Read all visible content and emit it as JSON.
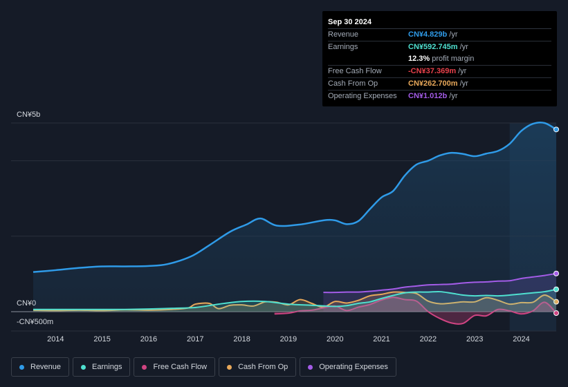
{
  "tooltip": {
    "date": "Sep 30 2024",
    "rows": [
      {
        "label": "Revenue",
        "value": "CN¥4.829b",
        "unit": "/yr",
        "color": "#2f9be8"
      },
      {
        "label": "Earnings",
        "value": "CN¥592.745m",
        "unit": "/yr",
        "color": "#4fe0d0"
      },
      {
        "label": "",
        "value": "12.3%",
        "unit": "profit margin",
        "color": "#ffffff"
      },
      {
        "label": "Free Cash Flow",
        "value": "-CN¥37.369m",
        "unit": "/yr",
        "color": "#e8414b"
      },
      {
        "label": "Cash From Op",
        "value": "CN¥262.700m",
        "unit": "/yr",
        "color": "#e8a85a"
      },
      {
        "label": "Operating Expenses",
        "value": "CN¥1.012b",
        "unit": "/yr",
        "color": "#a45ce8"
      }
    ]
  },
  "legend": [
    {
      "label": "Revenue",
      "color": "#2f9be8"
    },
    {
      "label": "Earnings",
      "color": "#4fe0d0"
    },
    {
      "label": "Free Cash Flow",
      "color": "#d04482"
    },
    {
      "label": "Cash From Op",
      "color": "#e8a85a"
    },
    {
      "label": "Operating Expenses",
      "color": "#a45ce8"
    }
  ],
  "chart_data": {
    "type": "area",
    "ytick_labels": [
      "CN¥5b",
      "CN¥0",
      "-CN¥500m"
    ],
    "ylim": [
      -500,
      5000
    ],
    "y_units": "CN¥ millions",
    "x_ticks": [
      "2014",
      "2015",
      "2016",
      "2017",
      "2018",
      "2019",
      "2020",
      "2021",
      "2022",
      "2023",
      "2024"
    ],
    "xlim": [
      2013.52,
      2024.75
    ],
    "series": [
      {
        "name": "Revenue",
        "color": "#2f9be8",
        "x": [
          2013.52,
          2014.0,
          2014.5,
          2015.0,
          2015.5,
          2016.0,
          2016.4,
          2016.9,
          2017.3,
          2017.75,
          2018.1,
          2018.4,
          2018.75,
          2019.25,
          2019.75,
          2020.0,
          2020.25,
          2020.5,
          2020.75,
          2021.0,
          2021.25,
          2021.5,
          2021.75,
          2022.0,
          2022.25,
          2022.5,
          2022.75,
          2023.0,
          2023.25,
          2023.5,
          2023.75,
          2024.0,
          2024.25,
          2024.5,
          2024.75
        ],
        "values": [
          1050,
          1100,
          1160,
          1200,
          1200,
          1210,
          1260,
          1460,
          1760,
          2120,
          2310,
          2470,
          2280,
          2310,
          2420,
          2420,
          2320,
          2400,
          2720,
          3030,
          3200,
          3610,
          3900,
          4000,
          4140,
          4210,
          4180,
          4120,
          4190,
          4260,
          4450,
          4790,
          4980,
          5000,
          4829
        ]
      },
      {
        "name": "Earnings",
        "color": "#4fe0d0",
        "x": [
          2013.52,
          2014.0,
          2014.5,
          2015.0,
          2015.5,
          2016.0,
          2016.5,
          2017.0,
          2017.5,
          2018.0,
          2018.5,
          2019.0,
          2019.5,
          2020.0,
          2020.25,
          2020.5,
          2020.75,
          2021.0,
          2021.25,
          2021.5,
          2021.75,
          2022.0,
          2022.25,
          2022.5,
          2022.75,
          2023.0,
          2023.25,
          2023.5,
          2023.75,
          2024.0,
          2024.25,
          2024.5,
          2024.75
        ],
        "values": [
          60,
          60,
          60,
          60,
          60,
          70,
          90,
          110,
          200,
          270,
          270,
          200,
          170,
          140,
          160,
          220,
          260,
          350,
          430,
          500,
          520,
          520,
          530,
          490,
          440,
          420,
          430,
          420,
          440,
          470,
          500,
          530,
          592.745
        ]
      },
      {
        "name": "Free Cash Flow",
        "color": "#d04482",
        "x": [
          2018.7,
          2019.0,
          2019.25,
          2019.5,
          2019.75,
          2020.0,
          2020.25,
          2020.5,
          2020.75,
          2021.0,
          2021.25,
          2021.5,
          2021.75,
          2022.0,
          2022.25,
          2022.5,
          2022.75,
          2023.0,
          2023.25,
          2023.5,
          2023.75,
          2024.0,
          2024.25,
          2024.5,
          2024.75
        ],
        "values": [
          -60,
          -40,
          20,
          40,
          100,
          150,
          30,
          120,
          190,
          310,
          380,
          320,
          280,
          0,
          -180,
          -300,
          -310,
          -100,
          -110,
          60,
          20,
          -60,
          20,
          250,
          -37.369
        ]
      },
      {
        "name": "Cash From Op",
        "color": "#e8a85a",
        "x": [
          2013.52,
          2014.0,
          2014.5,
          2015.0,
          2015.5,
          2016.0,
          2016.5,
          2016.85,
          2017.0,
          2017.3,
          2017.5,
          2017.75,
          2018.0,
          2018.25,
          2018.5,
          2018.75,
          2019.0,
          2019.25,
          2019.5,
          2019.75,
          2020.0,
          2020.25,
          2020.5,
          2020.75,
          2021.0,
          2021.25,
          2021.5,
          2021.75,
          2022.0,
          2022.25,
          2022.5,
          2022.75,
          2023.0,
          2023.25,
          2023.5,
          2023.75,
          2024.0,
          2024.25,
          2024.5,
          2024.75
        ],
        "values": [
          40,
          30,
          40,
          30,
          50,
          40,
          60,
          100,
          200,
          220,
          80,
          170,
          180,
          150,
          260,
          250,
          180,
          320,
          220,
          120,
          270,
          230,
          300,
          420,
          460,
          520,
          510,
          480,
          280,
          210,
          230,
          260,
          260,
          370,
          300,
          200,
          240,
          250,
          440,
          262.7
        ]
      },
      {
        "name": "Operating Expenses",
        "color": "#a45ce8",
        "x": [
          2019.75,
          2020.0,
          2020.25,
          2020.5,
          2020.75,
          2021.0,
          2021.25,
          2021.5,
          2021.75,
          2022.0,
          2022.25,
          2022.5,
          2022.75,
          2023.0,
          2023.25,
          2023.5,
          2023.75,
          2024.0,
          2024.25,
          2024.5,
          2024.75
        ],
        "values": [
          510,
          510,
          520,
          520,
          540,
          570,
          600,
          650,
          680,
          710,
          720,
          730,
          760,
          780,
          790,
          810,
          820,
          880,
          920,
          960,
          1012
        ]
      }
    ],
    "grid": true,
    "highlight_from": 2023.75,
    "legend_placement": "bottom"
  }
}
